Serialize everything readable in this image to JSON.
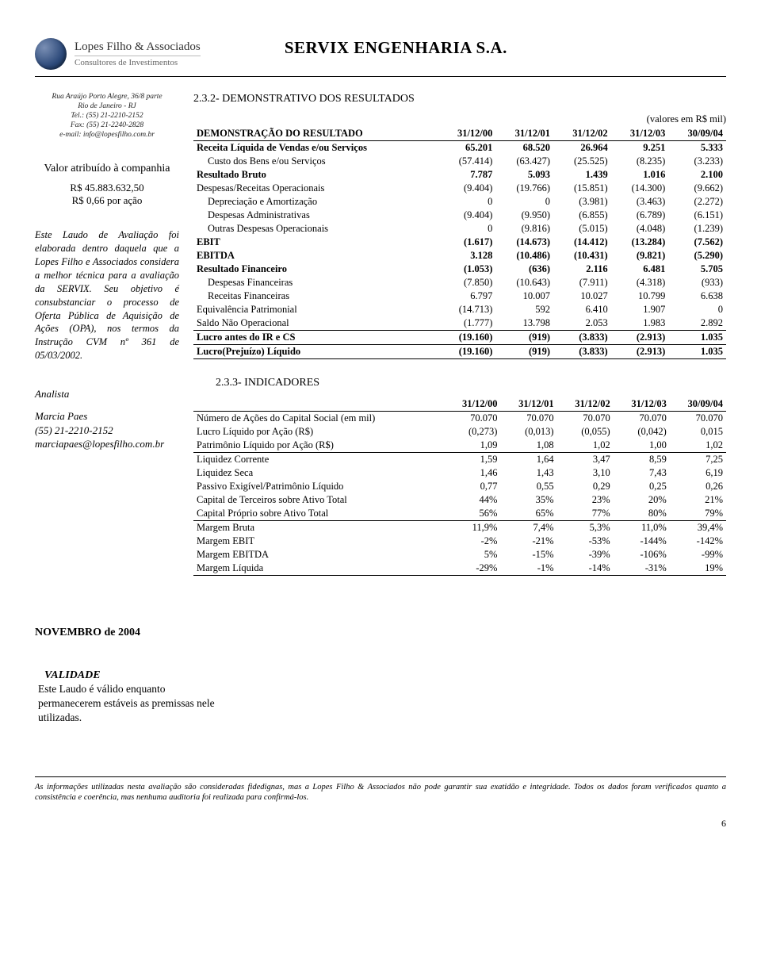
{
  "colors": {
    "text": "#000000",
    "bg": "#ffffff",
    "rule": "#000000",
    "muted": "#666666"
  },
  "logo": {
    "line1": "Lopes Filho & Associados",
    "line2": "Consultores de Investimentos"
  },
  "title": "SERVIX ENGENHARIA S.A.",
  "sidebar": {
    "address": [
      "Rua Araújo Porto Alegre, 36/8 parte",
      "Rio de Janeiro - RJ",
      "Tel.: (55) 21-2210-2152",
      "Fax: (55) 21-2240-2828",
      "e-mail: info@lopesfilho.com.br"
    ],
    "valuation_label": "Valor atribuído à companhia",
    "valuation_total": "R$ 45.883.632,50",
    "valuation_per_share": "R$ 0,66 por ação",
    "disclaimer": "Este Laudo de Avaliação foi elaborada dentro daquela que a Lopes Filho e Associados considera a melhor técnica para a avaliação da SERVIX. Seu objetivo é consubstanciar o processo de Oferta Pública de Aquisição de Ações (OPA), nos termos da Instrução CVM nº 361 de 05/03/2002.",
    "analyst_heading": "Analista",
    "analyst_name": "Marcia Paes",
    "analyst_phone": "(55) 21-2210-2152",
    "analyst_email": "marciapaes@lopesfilho.com.br"
  },
  "sections": {
    "demo_title": "2.3.2- DEMONSTRATIVO DOS RESULTADOS",
    "unit_note": "(valores em R$ mil)",
    "ind_title": "2.3.3- INDICADORES"
  },
  "tableA": {
    "header": [
      "DEMONSTRAÇÃO DO RESULTADO",
      "31/12/00",
      "31/12/01",
      "31/12/02",
      "31/12/03",
      "30/09/04"
    ],
    "rows": [
      {
        "label": "Receita Líquida de Vendas e/ou Serviços",
        "vals": [
          "65.201",
          "68.520",
          "26.964",
          "9.251",
          "5.333"
        ],
        "bold": true
      },
      {
        "label": "Custo dos Bens e/ou Serviços",
        "indent": true,
        "vals": [
          "(57.414)",
          "(63.427)",
          "(25.525)",
          "(8.235)",
          "(3.233)"
        ]
      },
      {
        "label": "Resultado Bruto",
        "vals": [
          "7.787",
          "5.093",
          "1.439",
          "1.016",
          "2.100"
        ],
        "bold": true
      },
      {
        "label": "Despesas/Receitas Operacionais",
        "vals": [
          "(9.404)",
          "(19.766)",
          "(15.851)",
          "(14.300)",
          "(9.662)"
        ]
      },
      {
        "label": "Depreciação e Amortização",
        "indent": true,
        "vals": [
          "0",
          "0",
          "(3.981)",
          "(3.463)",
          "(2.272)"
        ]
      },
      {
        "label": "Despesas Administrativas",
        "indent": true,
        "vals": [
          "(9.404)",
          "(9.950)",
          "(6.855)",
          "(6.789)",
          "(6.151)"
        ]
      },
      {
        "label": "Outras Despesas Operacionais",
        "indent": true,
        "vals": [
          "0",
          "(9.816)",
          "(5.015)",
          "(4.048)",
          "(1.239)"
        ]
      },
      {
        "label": "EBIT",
        "vals": [
          "(1.617)",
          "(14.673)",
          "(14.412)",
          "(13.284)",
          "(7.562)"
        ],
        "bold": true
      },
      {
        "label": "EBITDA",
        "vals": [
          "3.128",
          "(10.486)",
          "(10.431)",
          "(9.821)",
          "(5.290)"
        ],
        "bold": true
      },
      {
        "label": "Resultado Financeiro",
        "vals": [
          "(1.053)",
          "(636)",
          "2.116",
          "6.481",
          "5.705"
        ],
        "bold": true
      },
      {
        "label": "Despesas Financeiras",
        "indent": true,
        "vals": [
          "(7.850)",
          "(10.643)",
          "(7.911)",
          "(4.318)",
          "(933)"
        ]
      },
      {
        "label": "Receitas Financeiras",
        "indent": true,
        "vals": [
          "6.797",
          "10.007",
          "10.027",
          "10.799",
          "6.638"
        ]
      },
      {
        "label": "Equivalência Patrimonial",
        "vals": [
          "(14.713)",
          "592",
          "6.410",
          "1.907",
          "0"
        ]
      },
      {
        "label": "Saldo Não Operacional",
        "vals": [
          "(1.777)",
          "13.798",
          "2.053",
          "1.983",
          "2.892"
        ]
      },
      {
        "label": "Lucro antes do IR e CS",
        "vals": [
          "(19.160)",
          "(919)",
          "(3.833)",
          "(2.913)",
          "1.035"
        ],
        "bold": true,
        "topline": true
      },
      {
        "label": "Lucro(Prejuízo) Líquido",
        "vals": [
          "(19.160)",
          "(919)",
          "(3.833)",
          "(2.913)",
          "1.035"
        ],
        "bold": true,
        "topline": true,
        "bottom": true
      }
    ]
  },
  "tableB": {
    "header": [
      "",
      "31/12/00",
      "31/12/01",
      "31/12/02",
      "31/12/03",
      "30/09/04"
    ],
    "rows": [
      {
        "label": "Número de Ações do Capital Social (em mil)",
        "vals": [
          "70.070",
          "70.070",
          "70.070",
          "70.070",
          "70.070"
        ]
      },
      {
        "label": "Lucro Líquido por Ação (R$)",
        "vals": [
          "(0,273)",
          "(0,013)",
          "(0,055)",
          "(0,042)",
          "0,015"
        ]
      },
      {
        "label": "Patrimônio Líquido por Ação (R$)",
        "vals": [
          "1,09",
          "1,08",
          "1,02",
          "1,00",
          "1,02"
        ],
        "bottom": true
      },
      {
        "label": "Liquidez Corrente",
        "vals": [
          "1,59",
          "1,64",
          "3,47",
          "8,59",
          "7,25"
        ]
      },
      {
        "label": "Liquidez Seca",
        "vals": [
          "1,46",
          "1,43",
          "3,10",
          "7,43",
          "6,19"
        ]
      },
      {
        "label": "Passivo Exigível/Patrimônio Líquido",
        "vals": [
          "0,77",
          "0,55",
          "0,29",
          "0,25",
          "0,26"
        ]
      },
      {
        "label": "Capital de Terceiros sobre Ativo Total",
        "vals": [
          "44%",
          "35%",
          "23%",
          "20%",
          "21%"
        ]
      },
      {
        "label": "Capital Próprio sobre Ativo Total",
        "vals": [
          "56%",
          "65%",
          "77%",
          "80%",
          "79%"
        ],
        "bottom": true
      },
      {
        "label": "Margem Bruta",
        "vals": [
          "11,9%",
          "7,4%",
          "5,3%",
          "11,0%",
          "39,4%"
        ]
      },
      {
        "label": "Margem EBIT",
        "vals": [
          "-2%",
          "-21%",
          "-53%",
          "-144%",
          "-142%"
        ]
      },
      {
        "label": "Margem EBITDA",
        "vals": [
          "5%",
          "-15%",
          "-39%",
          "-106%",
          "-99%"
        ]
      },
      {
        "label": "Margem Líquida",
        "vals": [
          "-29%",
          "-1%",
          "-14%",
          "-31%",
          "19%"
        ],
        "bottom": true
      }
    ]
  },
  "footer": {
    "date_line": "NOVEMBRO de 2004",
    "validade_h": "VALIDADE",
    "validade_body": "Este Laudo é válido enquanto permanecerem estáveis as premissas nele utilizadas.",
    "footnote": "As informações utilizadas nesta avaliação são consideradas fidedignas, mas a Lopes Filho & Associados não pode garantir sua exatidão e integridade. Todos os dados foram verificados quanto a consistência e coerência, mas nenhuma auditoria foi realizada para confirmá-los.",
    "page_number": "6"
  }
}
